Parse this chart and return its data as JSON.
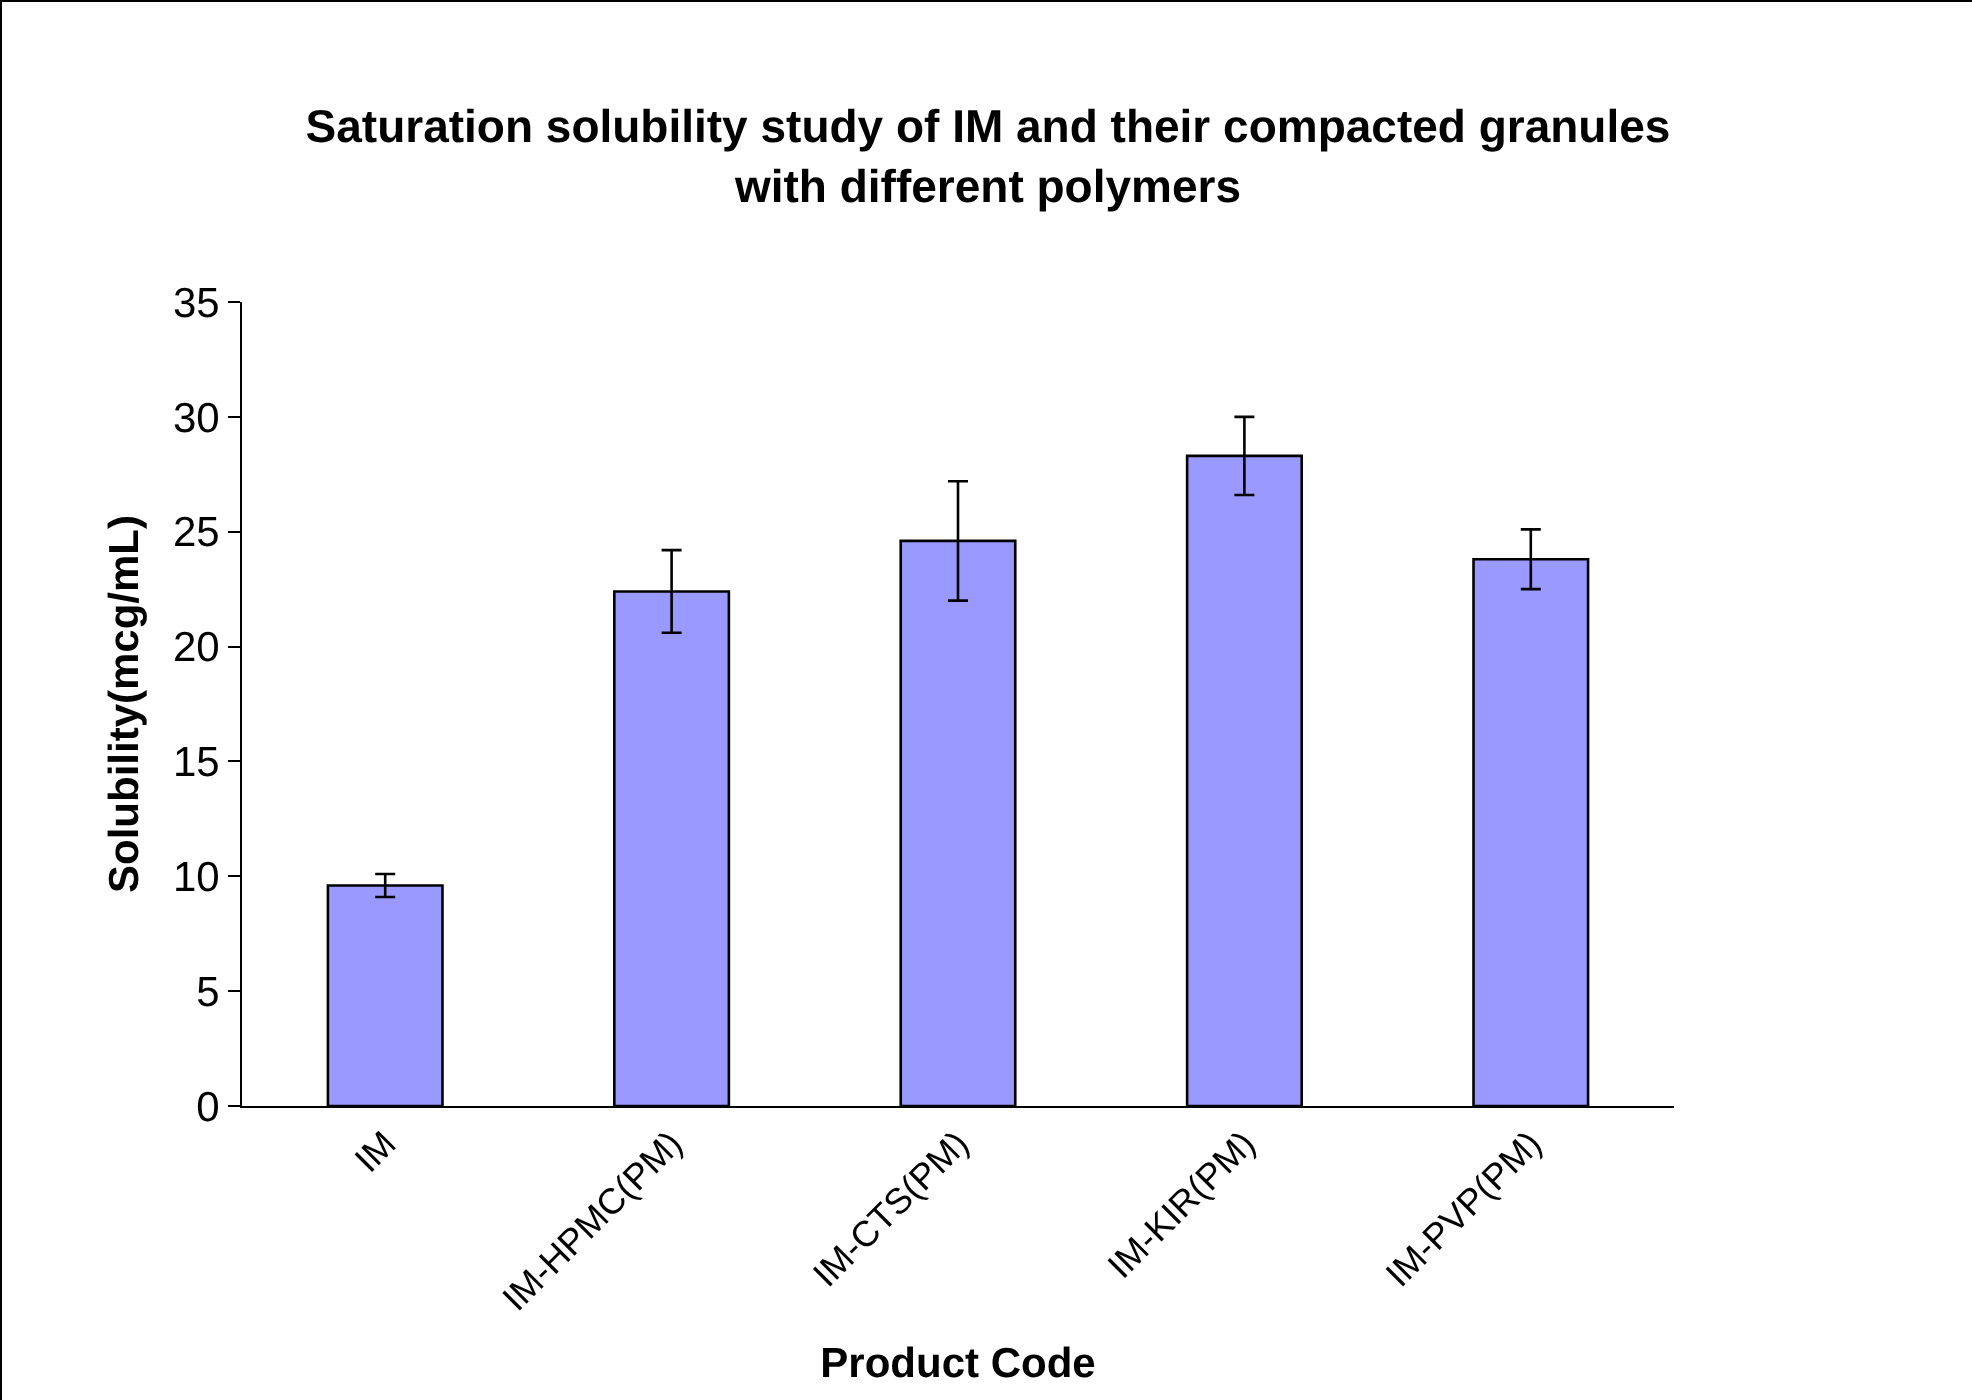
{
  "chart_data": {
    "type": "bar",
    "title": "Saturation solubility study of IM and their compacted granules\nwith different polymers",
    "xlabel": "Product Code",
    "ylabel": "Solubility(mcg/mL)",
    "categories": [
      "IM",
      "IM-HPMC(PM)",
      "IM-CTS(PM)",
      "IM-KIR(PM)",
      "IM-PVP(PM)"
    ],
    "values": [
      9.6,
      22.4,
      24.6,
      28.3,
      23.8
    ],
    "errors": [
      0.5,
      1.8,
      2.6,
      1.7,
      1.3
    ],
    "color": "#9999ff",
    "ylim": [
      0,
      35
    ],
    "yticks": [
      0,
      5,
      10,
      15,
      20,
      25,
      30,
      35
    ],
    "grid": false
  }
}
